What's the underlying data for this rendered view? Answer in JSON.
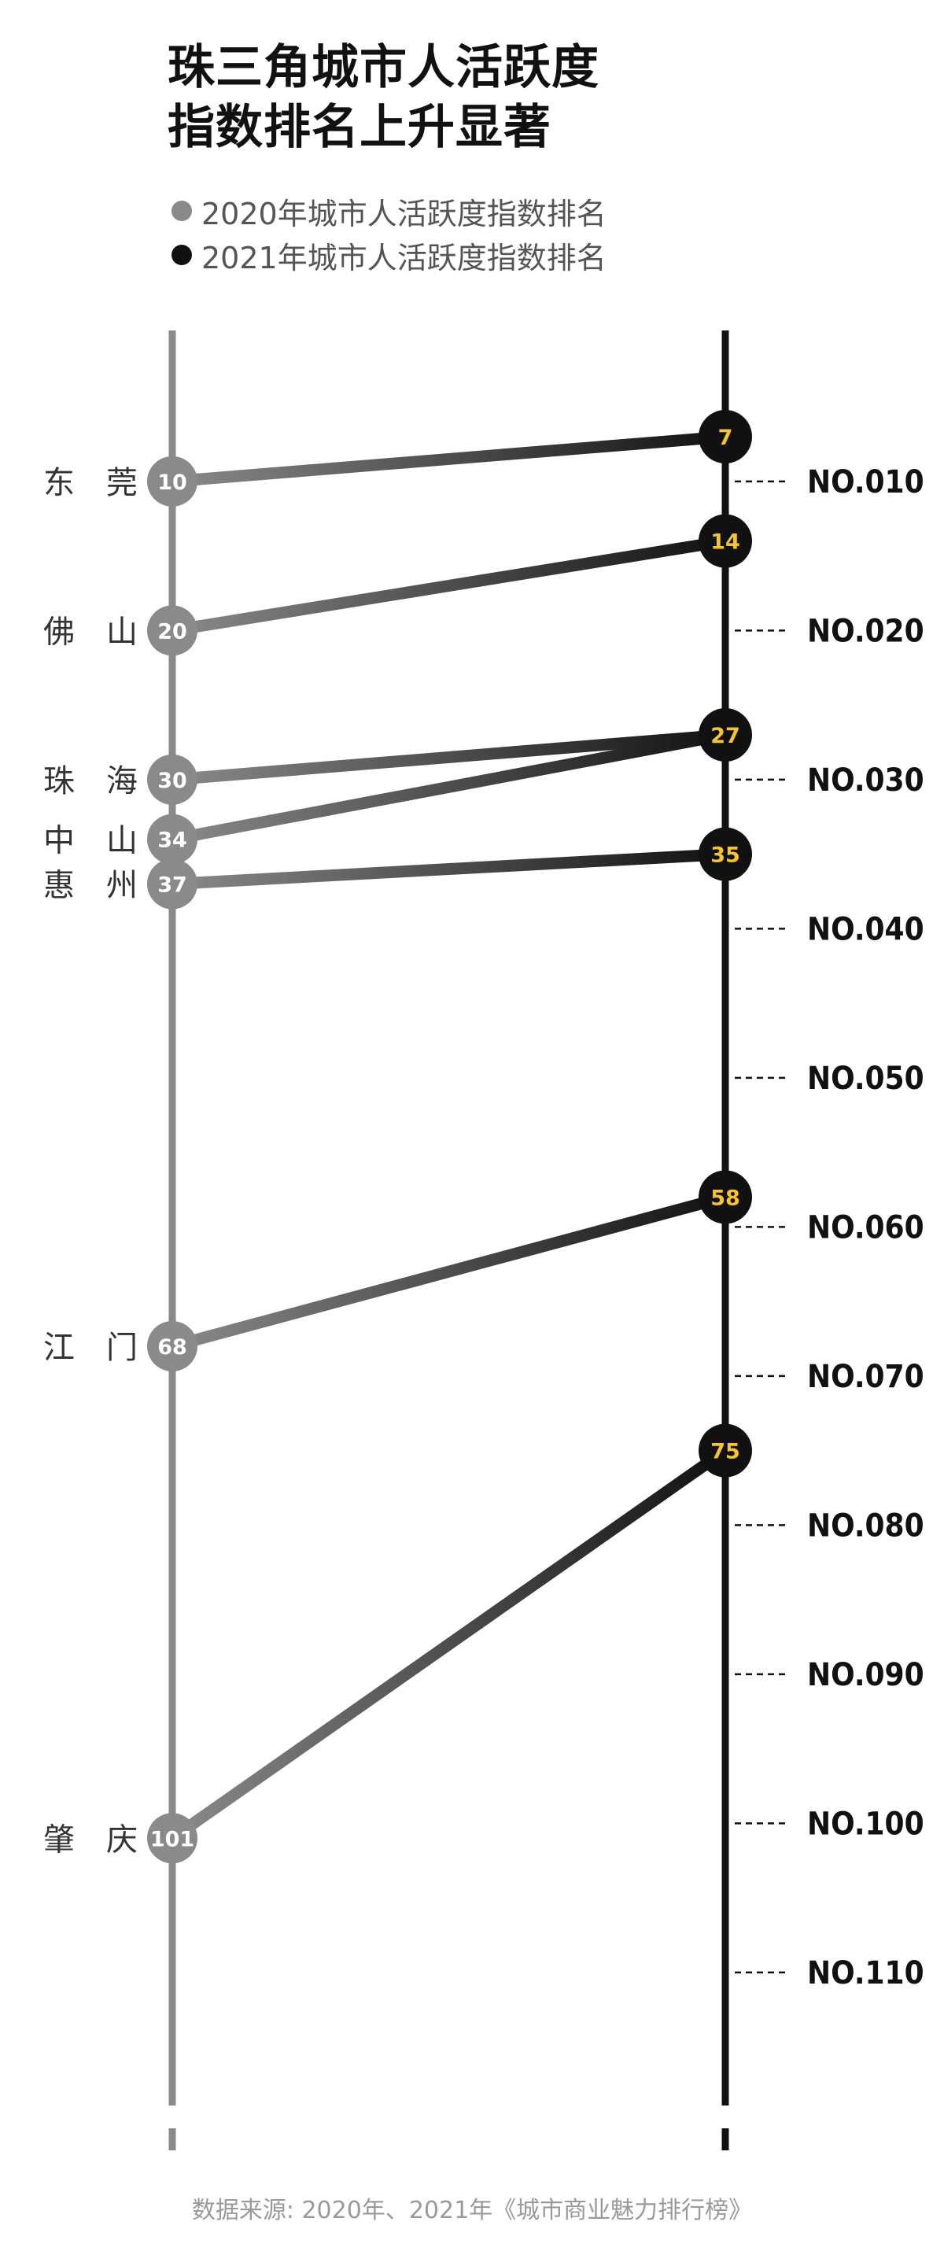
{
  "title": {
    "line1": "珠三角城市人活跃度",
    "line2": "指数排名上升显著"
  },
  "legend": [
    {
      "label": "2020年城市人活跃度指数排名",
      "color": "#8a8a8a",
      "icon": "grey-circle"
    },
    {
      "label": "2021年城市人活跃度指数排名",
      "color": "#111111",
      "icon": "black-circle"
    }
  ],
  "colors": {
    "axis_2020": "#8a8a8a",
    "axis_2021": "#111111",
    "label_2021": "#f5c431",
    "label_2020": "#ffffff",
    "city_text": "#333333",
    "tick_text": "#111111"
  },
  "chart_data": {
    "type": "slope",
    "y_axis": {
      "min": 1,
      "max": 118,
      "ticks": [
        10,
        20,
        30,
        40,
        50,
        60,
        70,
        80,
        90,
        100,
        110
      ],
      "tick_labels": [
        "NO.010",
        "NO.020",
        "NO.030",
        "NO.040",
        "NO.050",
        "NO.060",
        "NO.070",
        "NO.080",
        "NO.090",
        "NO.100",
        "NO.110"
      ],
      "inverted": true
    },
    "series": [
      {
        "name": "2020年城市人活跃度指数排名"
      },
      {
        "name": "2021年城市人活跃度指数排名"
      }
    ],
    "cities": [
      {
        "name": "东　莞",
        "rank_2020": 10,
        "rank_2021": 7
      },
      {
        "name": "佛　山",
        "rank_2020": 20,
        "rank_2021": 14
      },
      {
        "name": "珠　海",
        "rank_2020": 30,
        "rank_2021": 27
      },
      {
        "name": "中　山",
        "rank_2020": 34,
        "rank_2021": 27
      },
      {
        "name": "惠　州",
        "rank_2020": 37,
        "rank_2021": 35
      },
      {
        "name": "江　门",
        "rank_2020": 68,
        "rank_2021": 58
      },
      {
        "name": "肇　庆",
        "rank_2020": 101,
        "rank_2021": 75
      }
    ]
  },
  "source": "数据来源: 2020年、2021年《城市商业魅力排行榜》"
}
